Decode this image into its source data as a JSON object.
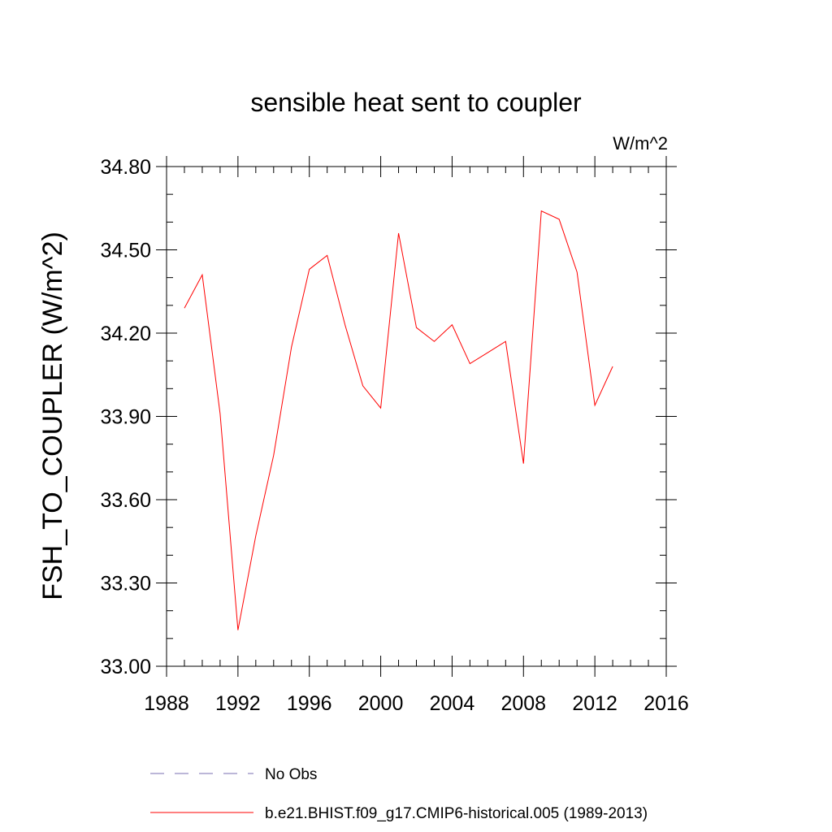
{
  "chart_data": {
    "type": "line",
    "title": "sensible heat sent to coupler",
    "units": "W/m^2",
    "ylabel": "FSH_TO_COUPLER  (W/m^2)",
    "xlabel": "",
    "xlim": [
      1988,
      2016
    ],
    "ylim": [
      33.0,
      34.8
    ],
    "x_ticks": [
      1988,
      1992,
      1996,
      2000,
      2004,
      2008,
      2012,
      2016
    ],
    "x_tick_labels": [
      "1988",
      "1992",
      "1996",
      "2000",
      "2004",
      "2008",
      "2012",
      "2016"
    ],
    "y_ticks": [
      33.0,
      33.3,
      33.6,
      33.9,
      34.2,
      34.5,
      34.8
    ],
    "y_tick_labels": [
      "33.00",
      "33.30",
      "33.60",
      "33.90",
      "34.20",
      "34.50",
      "34.80"
    ],
    "x_minor_step": 1,
    "y_minor_step": 0.1,
    "grid": false,
    "legend_position": "bottom",
    "series": [
      {
        "name": "No Obs",
        "style": "dashed",
        "color": "#7a6fb0",
        "x": [],
        "values": []
      },
      {
        "name": "b.e21.BHIST.f09_g17.CMIP6-historical.005 (1989-2013)",
        "style": "solid",
        "color": "#ff0000",
        "x": [
          1989,
          1990,
          1991,
          1992,
          1993,
          1994,
          1995,
          1996,
          1997,
          1998,
          1999,
          2000,
          2001,
          2002,
          2003,
          2004,
          2005,
          2006,
          2007,
          2008,
          2009,
          2010,
          2011,
          2012,
          2013
        ],
        "values": [
          34.29,
          34.41,
          33.91,
          33.13,
          33.47,
          33.76,
          34.15,
          34.43,
          34.48,
          34.23,
          34.01,
          33.93,
          34.56,
          34.22,
          34.17,
          34.23,
          34.09,
          34.13,
          34.17,
          33.73,
          34.64,
          34.61,
          34.42,
          33.94,
          34.08
        ]
      }
    ]
  }
}
